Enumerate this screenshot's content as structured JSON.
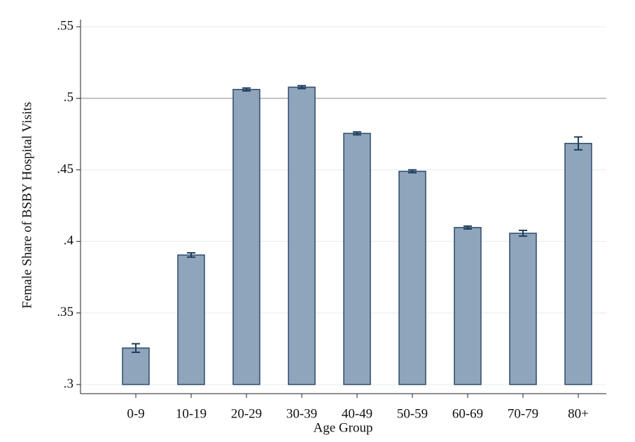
{
  "chart_data": {
    "type": "bar",
    "x_label": "Age Group",
    "y_label": "Female Share of BSBY Hospital Visits",
    "categories": [
      "0-9",
      "10-19",
      "20-29",
      "30-39",
      "40-49",
      "50-59",
      "60-69",
      "70-79",
      "80+"
    ],
    "values": [
      0.3255,
      0.3905,
      0.5062,
      0.5078,
      0.4755,
      0.449,
      0.4097,
      0.4057,
      0.4685
    ],
    "errors": [
      0.003,
      0.0015,
      0.001,
      0.001,
      0.001,
      0.001,
      0.001,
      0.002,
      0.0045
    ],
    "color": "#8fa5bb",
    "edge_color": "#2e4a6b",
    "error_color": "#1f3d5c",
    "ylim": [
      0.2936,
      0.555
    ],
    "yticks": [
      {
        "value": 0.3,
        "label": ".3"
      },
      {
        "value": 0.35,
        "label": ".35"
      },
      {
        "value": 0.4,
        "label": ".4"
      },
      {
        "value": 0.45,
        "label": ".45"
      },
      {
        "value": 0.5,
        "label": ".5"
      },
      {
        "value": 0.55,
        "label": ".55"
      }
    ],
    "reference_line": 0.5,
    "grid": true
  }
}
